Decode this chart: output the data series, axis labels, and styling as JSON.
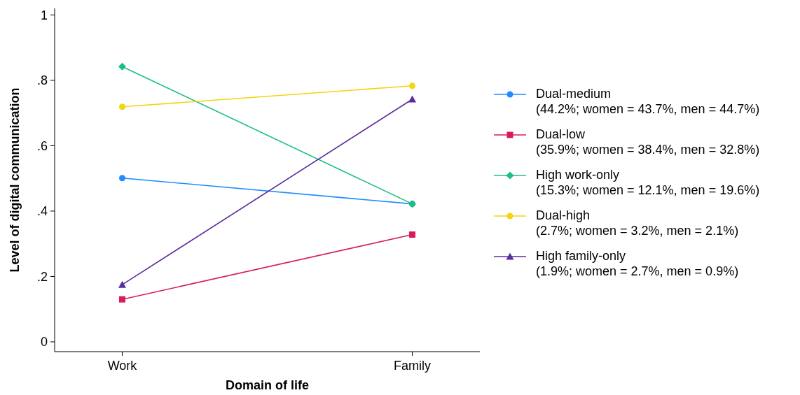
{
  "chart_data": {
    "type": "line",
    "xlabel": "Domain of life",
    "ylabel": "Level of digital communication",
    "categories": [
      "Work",
      "Family"
    ],
    "ylim": [
      -0.03,
      1.02
    ],
    "yticks": [
      0,
      {
        "value": 0.2,
        "label": ".2"
      },
      {
        "value": 0.4,
        "label": ".4"
      },
      {
        "value": 0.6,
        "label": ".6"
      },
      {
        "value": 0.8,
        "label": ".8"
      },
      1
    ],
    "grid": false,
    "legend": "right",
    "series": [
      {
        "name": "Dual-medium (44.2%; women = 43.7%, men = 44.7%)",
        "color": "#1f8cff",
        "marker": "circle",
        "values": [
          0.501,
          0.422
        ]
      },
      {
        "name": "Dual-low (35.9%; women = 38.4%, men = 32.8%)",
        "color": "#d81b60",
        "marker": "square",
        "values": [
          0.13,
          0.328
        ]
      },
      {
        "name": "High work-only (15.3%; women = 12.1%, men = 19.6%)",
        "color": "#1bbf7f",
        "marker": "diamond",
        "values": [
          0.842,
          0.422
        ]
      },
      {
        "name": "Dual-high (2.7%; women = 3.2%, men = 2.1%)",
        "color": "#f5d410",
        "marker": "circle",
        "values": [
          0.719,
          0.783
        ]
      },
      {
        "name": "High family-only (1.9%; women = 2.7%, men = 0.9%)",
        "color": "#5a2ca0",
        "marker": "triangle",
        "values": [
          0.175,
          0.742
        ]
      }
    ]
  }
}
